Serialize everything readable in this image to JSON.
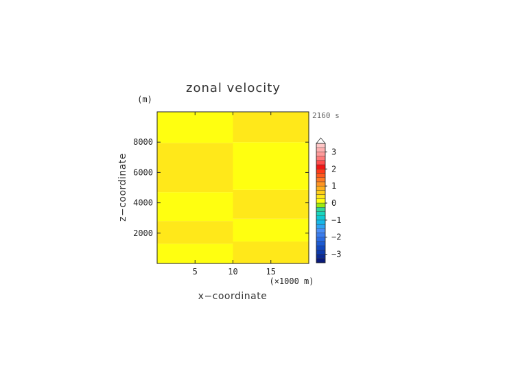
{
  "chart_data": {
    "type": "heatmap",
    "title": "zonal velocity",
    "xlabel": "x−coordinate",
    "x_unit": "(×1000 m)",
    "ylabel": "z−coordinate",
    "y_unit": "(m)",
    "time_label": "2160 s",
    "xlim": [
      0,
      20
    ],
    "ylim": [
      0,
      10000
    ],
    "xticks": [
      5,
      10,
      15
    ],
    "xtick_labels": [
      "5",
      "10",
      "15"
    ],
    "yticks": [
      2000,
      4000,
      6000,
      8000
    ],
    "ytick_labels": [
      "2000",
      "4000",
      "6000",
      "8000"
    ],
    "regions": [
      {
        "x": [
          0,
          10
        ],
        "z": [
          0,
          1300
        ],
        "value": 0
      },
      {
        "x": [
          0,
          10
        ],
        "z": [
          1300,
          2800
        ],
        "value": 0.25
      },
      {
        "x": [
          0,
          10
        ],
        "z": [
          2800,
          4700
        ],
        "value": 0
      },
      {
        "x": [
          0,
          10
        ],
        "z": [
          4700,
          7950
        ],
        "value": 0.25
      },
      {
        "x": [
          0,
          10
        ],
        "z": [
          7950,
          10000
        ],
        "value": 0
      },
      {
        "x": [
          10,
          20
        ],
        "z": [
          0,
          1450
        ],
        "value": 0.25
      },
      {
        "x": [
          10,
          20
        ],
        "z": [
          1450,
          2950
        ],
        "value": 0
      },
      {
        "x": [
          10,
          20
        ],
        "z": [
          2950,
          4850
        ],
        "value": 0.25
      },
      {
        "x": [
          10,
          20
        ],
        "z": [
          4850,
          8000
        ],
        "value": 0
      },
      {
        "x": [
          10,
          20
        ],
        "z": [
          8000,
          10000
        ],
        "value": 0.25
      }
    ],
    "colorbar": {
      "levels": [
        -3.5,
        -3.25,
        -3,
        -2.75,
        -2.5,
        -2.25,
        -2,
        -1.75,
        -1.5,
        -1.25,
        -1,
        -0.75,
        -0.5,
        -0.25,
        0,
        0.25,
        0.5,
        0.75,
        1,
        1.25,
        1.5,
        1.75,
        2,
        2.25,
        2.5,
        2.75,
        3,
        3.25,
        3.5
      ],
      "colors": [
        "#0a1a7a",
        "#0c2a92",
        "#0e3aaa",
        "#1148bf",
        "#1c5ad2",
        "#2a6be2",
        "#3a7cee",
        "#4a8df6",
        "#2ea3f2",
        "#17b8e8",
        "#10c9d4",
        "#18d6bf",
        "#33d49a",
        "#9bea10",
        "#ffff10",
        "#ffe81a",
        "#ffcf1a",
        "#ffb01f",
        "#ff9524",
        "#ff7a24",
        "#ff5a1e",
        "#ff3a1a",
        "#f01616",
        "#ff4e4e",
        "#ff7a7a",
        "#ff9a9a",
        "#ffb0b0",
        "#ffc6c6"
      ],
      "tick_values": [
        3,
        2,
        1,
        0,
        -1,
        -2,
        -3
      ],
      "tick_labels": [
        "3",
        "2",
        "1",
        "0",
        "−1",
        "−2",
        "−3"
      ],
      "extend": "max"
    }
  }
}
